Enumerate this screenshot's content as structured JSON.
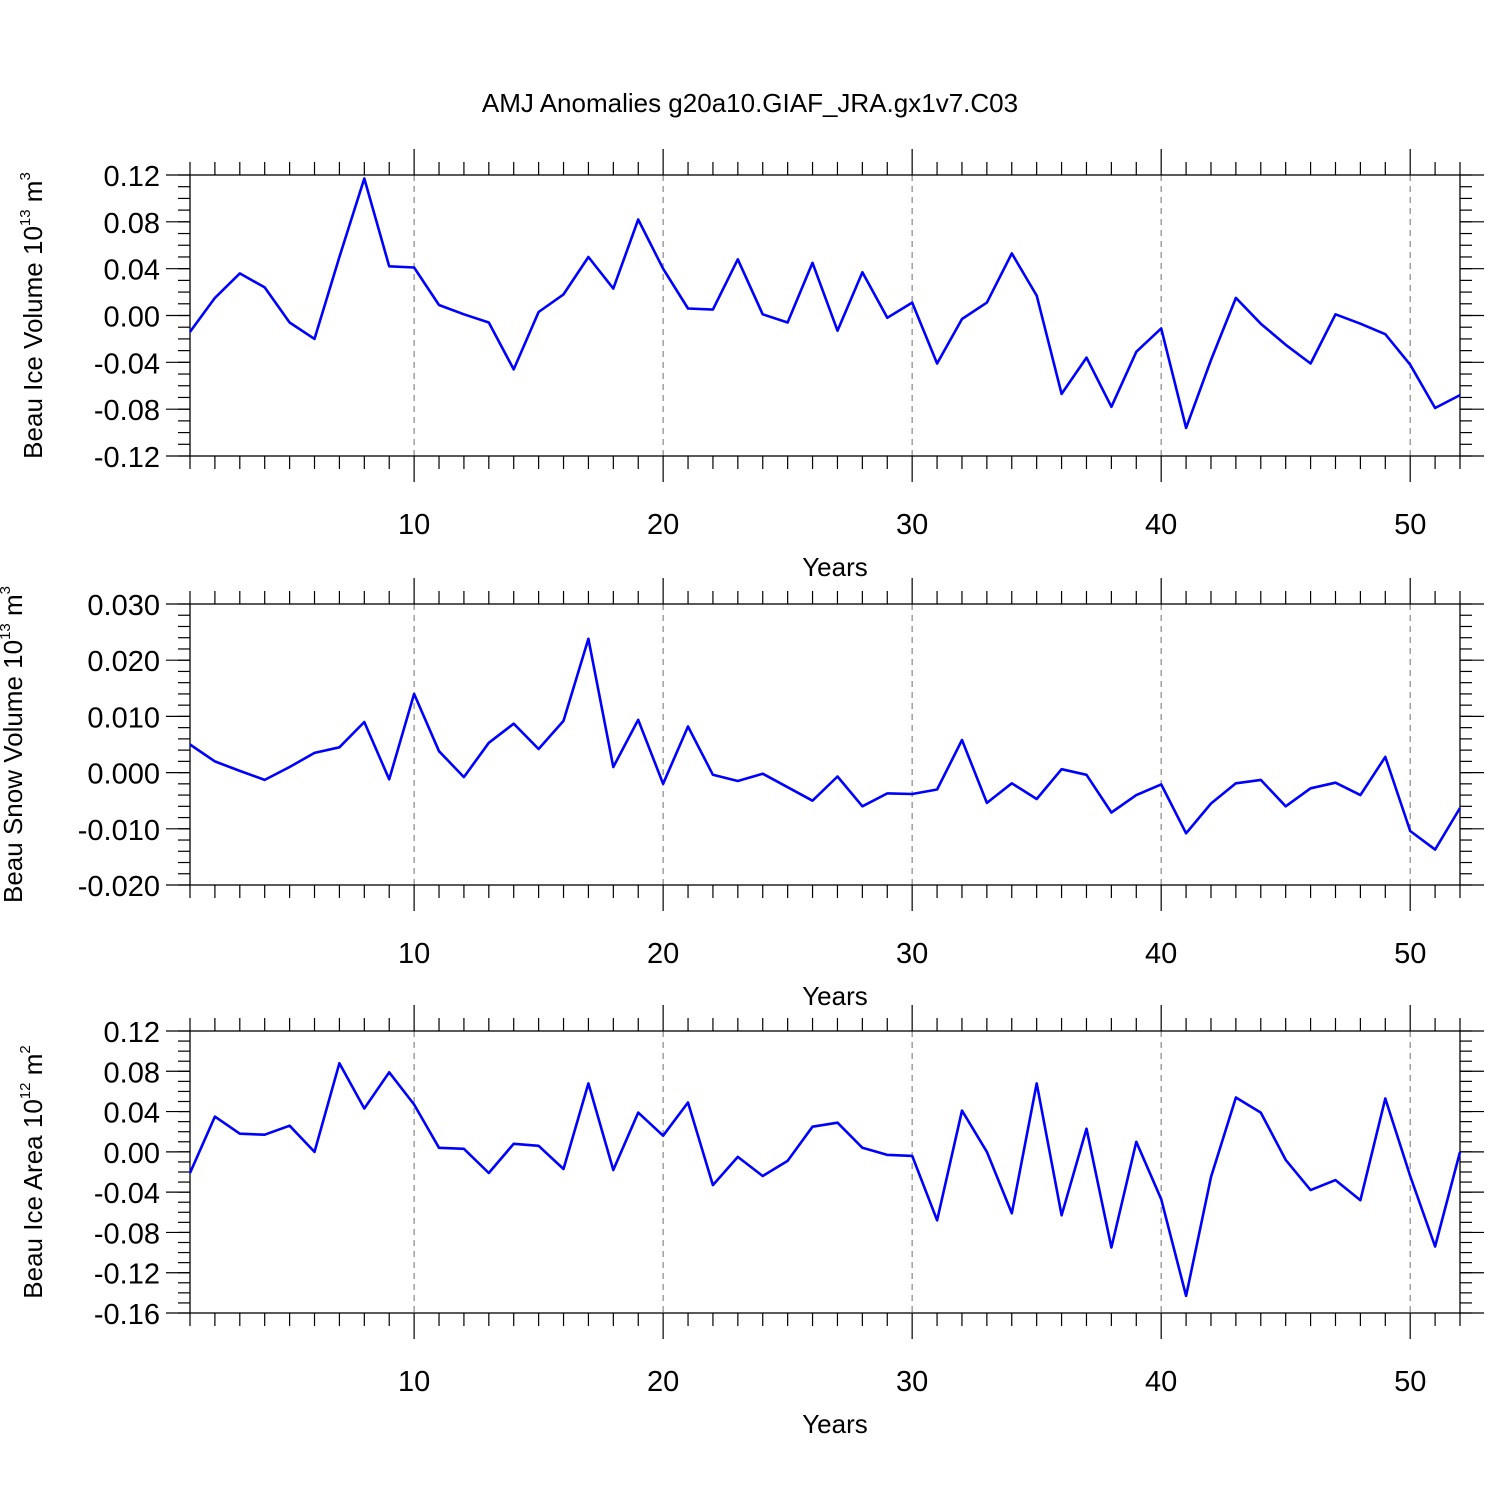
{
  "title": "AMJ Anomalies g20a10.GIAF_JRA.gx1v7.C03",
  "colors": {
    "series": "#0000ff",
    "axis": "#000000",
    "grid": "#888888"
  },
  "chart_data": [
    {
      "type": "line",
      "ylabel": {
        "text": "Beau Ice Volume 10",
        "exp": "13",
        "unit": "m",
        "unit_exp": "3"
      },
      "xlabel": "Years",
      "xlim": [
        1,
        52
      ],
      "ylim": [
        -0.12,
        0.12
      ],
      "yticks": [
        "0.12",
        "0.08",
        "0.04",
        "0.00",
        "-0.04",
        "-0.08",
        "-0.12"
      ],
      "ytick_values": [
        0.12,
        0.08,
        0.04,
        0.0,
        -0.04,
        -0.08,
        -0.12
      ],
      "y_minor_step": 0.01,
      "xticks": [
        "10",
        "20",
        "30",
        "40",
        "50"
      ],
      "xtick_values": [
        10,
        20,
        30,
        40,
        50
      ],
      "grid": "vertical dashed at major x ticks",
      "series": [
        {
          "x": [
            1,
            2,
            3,
            4,
            5,
            6,
            7,
            8,
            9,
            10,
            11,
            12,
            13,
            14,
            15,
            16,
            17,
            18,
            19,
            20,
            21,
            22,
            23,
            24,
            25,
            26,
            27,
            28,
            29,
            30,
            31,
            32,
            33,
            34,
            35,
            36,
            37,
            38,
            39,
            40,
            41,
            42,
            43,
            44,
            45,
            46,
            47,
            48,
            49,
            50,
            51,
            52
          ],
          "values": [
            -0.014,
            0.015,
            0.036,
            0.024,
            -0.006,
            -0.02,
            0.05,
            0.117,
            0.042,
            0.041,
            0.009,
            0.001,
            -0.006,
            -0.046,
            0.003,
            0.018,
            0.05,
            0.023,
            0.082,
            0.04,
            0.006,
            0.005,
            0.048,
            0.001,
            -0.006,
            0.045,
            -0.013,
            0.037,
            -0.002,
            0.011,
            -0.041,
            -0.003,
            0.011,
            0.053,
            0.017,
            -0.067,
            -0.036,
            -0.078,
            -0.031,
            -0.011,
            -0.096,
            -0.038,
            0.015,
            -0.007,
            -0.025,
            -0.041,
            0.001,
            -0.007,
            -0.016,
            -0.042,
            -0.079,
            -0.068
          ]
        }
      ]
    },
    {
      "type": "line",
      "ylabel": {
        "text": "Beau Snow Volume 10",
        "exp": "13",
        "unit": "m",
        "unit_exp": "3"
      },
      "xlabel": "Years",
      "xlim": [
        1,
        52
      ],
      "ylim": [
        -0.02,
        0.03
      ],
      "yticks": [
        "0.030",
        "0.020",
        "0.010",
        "0.000",
        "-0.010",
        "-0.020"
      ],
      "ytick_values": [
        0.03,
        0.02,
        0.01,
        0.0,
        -0.01,
        -0.02
      ],
      "y_minor_step": 0.002,
      "xticks": [
        "10",
        "20",
        "30",
        "40",
        "50"
      ],
      "xtick_values": [
        10,
        20,
        30,
        40,
        50
      ],
      "grid": "vertical dashed at major x ticks",
      "series": [
        {
          "x": [
            1,
            2,
            3,
            4,
            5,
            6,
            7,
            8,
            9,
            10,
            11,
            12,
            13,
            14,
            15,
            16,
            17,
            18,
            19,
            20,
            21,
            22,
            23,
            24,
            25,
            26,
            27,
            28,
            29,
            30,
            31,
            32,
            33,
            34,
            35,
            36,
            37,
            38,
            39,
            40,
            41,
            42,
            43,
            44,
            45,
            46,
            47,
            48,
            49,
            50,
            51,
            52
          ],
          "values": [
            0.005,
            0.002,
            0.0003,
            -0.0013,
            0.001,
            0.0035,
            0.0045,
            0.009,
            -0.0012,
            0.014,
            0.0038,
            -0.0008,
            0.0053,
            0.0087,
            0.0042,
            0.0092,
            0.0238,
            0.001,
            0.0094,
            -0.002,
            0.0082,
            -0.0004,
            -0.0015,
            -0.0002,
            -0.0026,
            -0.005,
            -0.0007,
            -0.006,
            -0.0037,
            -0.0038,
            -0.003,
            0.0058,
            -0.0054,
            -0.0019,
            -0.0047,
            0.0006,
            -0.0004,
            -0.0071,
            -0.004,
            -0.0021,
            -0.0108,
            -0.0055,
            -0.0019,
            -0.0013,
            -0.006,
            -0.0028,
            -0.0018,
            -0.004,
            0.0028,
            -0.0104,
            -0.0137,
            -0.0063
          ]
        }
      ]
    },
    {
      "type": "line",
      "ylabel": {
        "text": "Beau Ice Area 10",
        "exp": "12",
        "unit": "m",
        "unit_exp": "2"
      },
      "xlabel": "Years",
      "xlim": [
        1,
        52
      ],
      "ylim": [
        -0.16,
        0.12
      ],
      "yticks": [
        "0.12",
        "0.08",
        "0.04",
        "0.00",
        "-0.04",
        "-0.08",
        "-0.12",
        "-0.16"
      ],
      "ytick_values": [
        0.12,
        0.08,
        0.04,
        0.0,
        -0.04,
        -0.08,
        -0.12,
        -0.16
      ],
      "y_minor_step": 0.01,
      "xticks": [
        "10",
        "20",
        "30",
        "40",
        "50"
      ],
      "xtick_values": [
        10,
        20,
        30,
        40,
        50
      ],
      "grid": "vertical dashed at major x ticks",
      "series": [
        {
          "x": [
            1,
            2,
            3,
            4,
            5,
            6,
            7,
            8,
            9,
            10,
            11,
            12,
            13,
            14,
            15,
            16,
            17,
            18,
            19,
            20,
            21,
            22,
            23,
            24,
            25,
            26,
            27,
            28,
            29,
            30,
            31,
            32,
            33,
            34,
            35,
            36,
            37,
            38,
            39,
            40,
            41,
            42,
            43,
            44,
            45,
            46,
            47,
            48,
            49,
            50,
            51,
            52
          ],
          "values": [
            -0.021,
            0.035,
            0.018,
            0.017,
            0.026,
            0.0,
            0.088,
            0.043,
            0.079,
            0.047,
            0.004,
            0.003,
            -0.021,
            0.008,
            0.006,
            -0.017,
            0.068,
            -0.018,
            0.039,
            0.016,
            0.049,
            -0.033,
            -0.005,
            -0.024,
            -0.009,
            0.025,
            0.029,
            0.004,
            -0.003,
            -0.004,
            -0.068,
            0.041,
            0.0,
            -0.061,
            0.068,
            -0.063,
            0.023,
            -0.095,
            0.01,
            -0.047,
            -0.143,
            -0.025,
            0.054,
            0.039,
            -0.008,
            -0.038,
            -0.028,
            -0.048,
            0.053,
            -0.024,
            -0.094,
            0.0
          ]
        }
      ]
    }
  ]
}
